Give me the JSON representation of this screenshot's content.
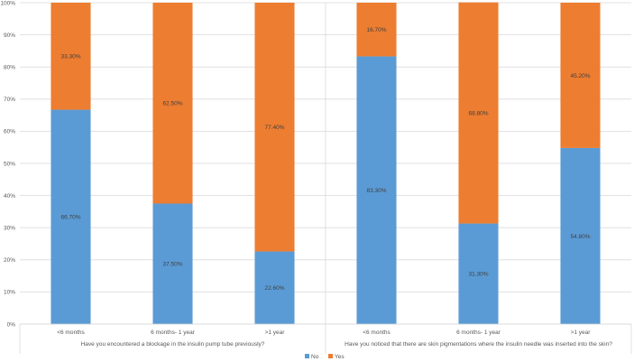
{
  "chart_data": {
    "type": "bar",
    "stacked": true,
    "percent": true,
    "ylim": [
      0,
      100
    ],
    "yticks": [
      0,
      10,
      20,
      30,
      40,
      50,
      60,
      70,
      80,
      90,
      100
    ],
    "ytick_labels": [
      "0%",
      "10%",
      "20%",
      "30%",
      "40%",
      "50%",
      "60%",
      "70%",
      "80%",
      "90%",
      "100%"
    ],
    "groups": [
      {
        "label": "Have you encountered a blockage in the insulin pump tube previously?",
        "categories": [
          "<6 months",
          "6 months- 1 year",
          ">1 year"
        ]
      },
      {
        "label": "Have you noticed that there are skin pigmentations where the insulin needle was inserted into the skin?",
        "categories": [
          "<6 months",
          "6 months- 1 year",
          ">1 year"
        ]
      }
    ],
    "series": [
      {
        "name": "No",
        "color": "#5B9BD5",
        "values": [
          66.7,
          37.5,
          22.6,
          83.3,
          31.3,
          54.8
        ],
        "labels": [
          "66.70%",
          "37.50%",
          "22.60%",
          "83.30%",
          "31.30%",
          "54.80%"
        ]
      },
      {
        "name": "Yes",
        "color": "#ED7D31",
        "values": [
          33.3,
          62.5,
          77.4,
          16.7,
          68.8,
          45.2
        ],
        "labels": [
          "33.30%",
          "62.50%",
          "77.40%",
          "16.70%",
          "68.80%",
          "45.20%"
        ]
      }
    ],
    "legend_position": "bottom"
  }
}
